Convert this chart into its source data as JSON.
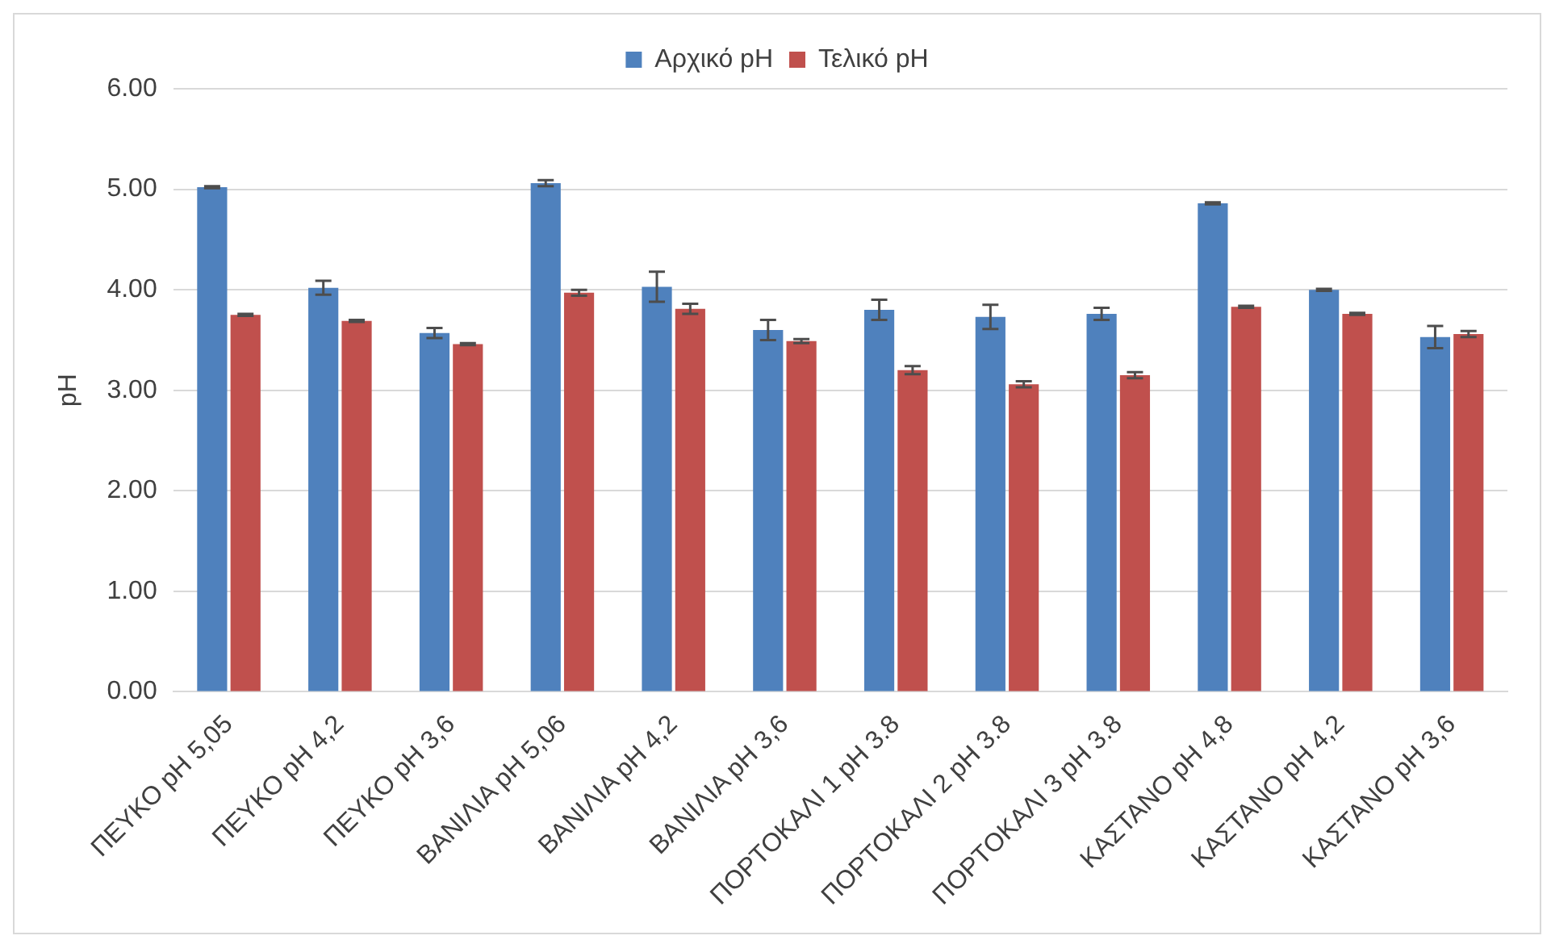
{
  "chart_data": {
    "type": "bar",
    "ylabel": "pH",
    "categories": [
      "ΠΕΥΚΟ pH 5,05",
      "ΠΕΥΚΟ pH 4,2",
      "ΠΕΥΚΟ pH 3,6",
      "ΒΑΝΙΛΙΑ pH 5,06",
      "ΒΑΝΙΛΙΑ pH 4,2",
      "ΒΑΝΙΛΙΑ pH 3,6",
      "ΠΟΡΤΟΚΑΛΙ 1 pH 3.8",
      "ΠΟΡΤΟΚΑΛΙ 2 pH 3.8",
      "ΠΟΡΤΟΚΑΛΙ 3 pH 3.8",
      "ΚΑΣΤΑΝΟ pH 4,8",
      "ΚΑΣΤΑΝΟ pH 4,2",
      "ΚΑΣΤΑΝΟ pH 3,6"
    ],
    "series": [
      {
        "name": "Αρχικό pH",
        "color": "#4f81bd",
        "values": [
          5.02,
          4.02,
          3.57,
          5.06,
          4.03,
          3.6,
          3.8,
          3.73,
          3.76,
          4.86,
          4.0,
          3.53
        ],
        "errors": [
          0.01,
          0.07,
          0.05,
          0.03,
          0.15,
          0.1,
          0.1,
          0.12,
          0.06,
          0.01,
          0.01,
          0.11
        ]
      },
      {
        "name": "Τελικό pH",
        "color": "#c0504d",
        "values": [
          3.75,
          3.69,
          3.46,
          3.97,
          3.81,
          3.49,
          3.2,
          3.06,
          3.15,
          3.83,
          3.76,
          3.56
        ],
        "errors": [
          0.01,
          0.01,
          0.01,
          0.03,
          0.05,
          0.02,
          0.04,
          0.03,
          0.03,
          0.01,
          0.01,
          0.03
        ]
      }
    ],
    "ylim": [
      0,
      6
    ],
    "yticks": [
      {
        "value": 0,
        "label": "0.00"
      },
      {
        "value": 1,
        "label": "1.00"
      },
      {
        "value": 2,
        "label": "2.00"
      },
      {
        "value": 3,
        "label": "3.00"
      },
      {
        "value": 4,
        "label": "4.00"
      },
      {
        "value": 5,
        "label": "5.00"
      },
      {
        "value": 6,
        "label": "6.00"
      }
    ],
    "grid": "y",
    "legend": "top"
  }
}
